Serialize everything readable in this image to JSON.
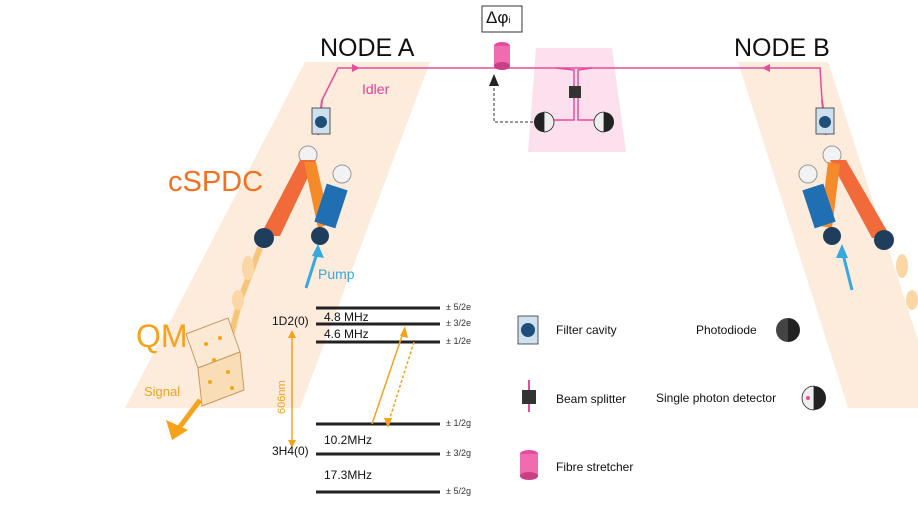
{
  "nodes": {
    "a": "NODE A",
    "b": "NODE B"
  },
  "labels": {
    "idler": "Idler",
    "cspdc": "cSPDC",
    "pump": "Pump",
    "qm": "QM",
    "signal": "Signal",
    "phase": "Δφ",
    "phase_sub": "i"
  },
  "levels": {
    "upper_state": "1D2(0)",
    "lower_state": "3H4(0)",
    "wavelength": "606nm",
    "upper_splittings": [
      "4.8 MHz",
      "4.6 MHz"
    ],
    "lower_splittings": [
      "10.2MHz",
      "17.3MHz"
    ],
    "upper_sublevels": [
      "± 5/2e",
      "± 3/2e",
      "± 1/2e"
    ],
    "lower_sublevels": [
      "± 1/2g",
      "± 3/2g",
      "± 5/2g"
    ]
  },
  "legend": [
    {
      "label": "Filter cavity",
      "icon": "filter-cavity-icon"
    },
    {
      "label": "Beam splitter",
      "icon": "beam-splitter-icon"
    },
    {
      "label": "Fibre stretcher",
      "icon": "fibre-stretcher-icon"
    },
    {
      "label": "Photodiode",
      "icon": "photodiode-icon"
    },
    {
      "label": "Single photon detector",
      "icon": "single-photon-detector-icon"
    }
  ],
  "colors": {
    "fibre": "#e74c9c",
    "node_bg": "#fde7d5",
    "orange": "#f7a21b",
    "pump": "#38a8e0",
    "detector_bg": "#fce0ee",
    "dark_blue": "#1f4e79"
  }
}
